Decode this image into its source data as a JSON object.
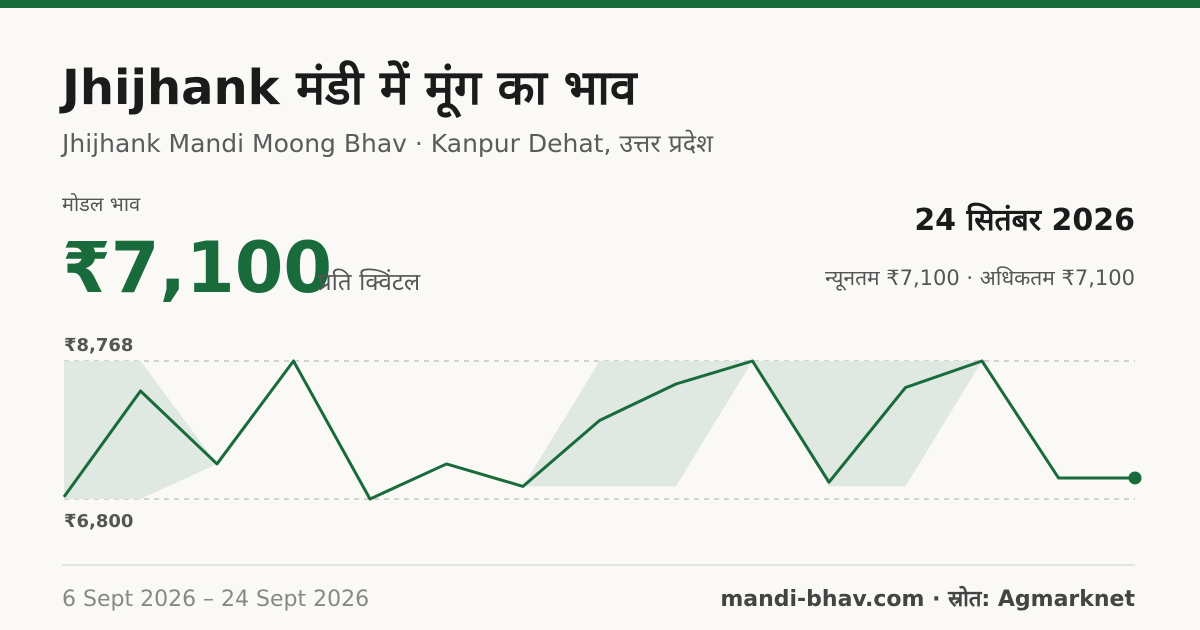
{
  "header": {
    "title": "Jhijhank मंडी में मूंग का भाव",
    "subtitle": "Jhijhank Mandi Moong Bhav · Kanpur Dehat, उत्तर प्रदेश"
  },
  "price": {
    "label": "मोडल भाव",
    "value": "₹7,100",
    "unit": "प्रति क्विंटल"
  },
  "date": "24 सितंबर 2026",
  "range": "न्यूनतम ₹7,100 · अधिकतम ₹7,100",
  "footer": {
    "period": "6 Sept 2026 – 24 Sept 2026",
    "source": "mandi-bhav.com · स्रोत: Agmarknet"
  },
  "chart_data": {
    "type": "line",
    "color": "#1a6b3c",
    "band_color": "#dfe8e1",
    "values": [
      6830,
      8340,
      7300,
      8768,
      6800,
      7300,
      6980,
      7920,
      8440,
      8768,
      7040,
      8390,
      8768,
      7100,
      7100
    ],
    "band_max": [
      8768,
      8768,
      7300,
      8768,
      6800,
      7300,
      6980,
      8768,
      8768,
      8768,
      8768,
      8768,
      8768,
      7100,
      7100
    ],
    "band_min": [
      6800,
      6800,
      7300,
      8768,
      6800,
      7300,
      6980,
      6980,
      6980,
      8768,
      6980,
      6980,
      8768,
      7100,
      7100
    ],
    "ylim": [
      6800,
      8768
    ],
    "yticks": [
      {
        "value": 6800,
        "label": "₹6,800"
      },
      {
        "value": 8768,
        "label": "₹8,768"
      }
    ],
    "grid": true
  }
}
